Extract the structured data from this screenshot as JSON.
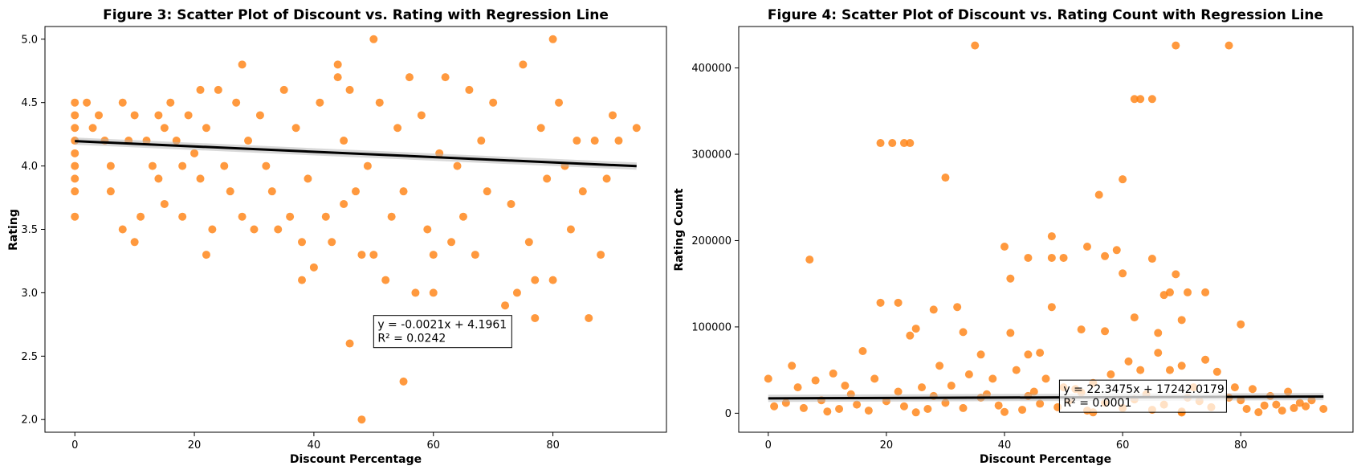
{
  "colors": {
    "point": "#ff7f0e",
    "line": "#000000",
    "ci": "#b3b3b3"
  },
  "chart_data": [
    {
      "type": "scatter",
      "title": "Figure 3: Scatter Plot of Discount vs. Rating with Regression Line",
      "xlabel": "Discount Percentage",
      "ylabel": "Rating",
      "xlim": [
        -5,
        99
      ],
      "ylim": [
        1.9,
        5.1
      ],
      "xticks": [
        0,
        20,
        40,
        60,
        80
      ],
      "yticks": [
        2.0,
        2.5,
        3.0,
        3.5,
        4.0,
        4.5,
        5.0
      ],
      "ytick_labels": [
        "2.0",
        "2.5",
        "3.0",
        "3.5",
        "4.0",
        "4.5",
        "5.0"
      ],
      "xtick_labels": [
        "0",
        "20",
        "40",
        "60",
        "80"
      ],
      "regression": {
        "slope": -0.0021,
        "intercept": 4.1961,
        "x_range": [
          0,
          94
        ]
      },
      "annotation": {
        "line1": "y = -0.0021x + 4.1961",
        "line2": "R² = 0.0242",
        "x": 50,
        "y": 2.58
      },
      "grid": false,
      "points": [
        [
          0,
          4.5
        ],
        [
          0,
          4.4
        ],
        [
          0,
          4.3
        ],
        [
          0,
          4.2
        ],
        [
          0,
          4.1
        ],
        [
          0,
          4.0
        ],
        [
          0,
          3.9
        ],
        [
          0,
          3.8
        ],
        [
          0,
          3.6
        ],
        [
          2,
          4.5
        ],
        [
          3,
          4.3
        ],
        [
          4,
          4.4
        ],
        [
          5,
          4.2
        ],
        [
          6,
          4.0
        ],
        [
          6,
          3.8
        ],
        [
          8,
          4.5
        ],
        [
          8,
          3.5
        ],
        [
          9,
          4.2
        ],
        [
          10,
          4.4
        ],
        [
          10,
          3.4
        ],
        [
          11,
          3.6
        ],
        [
          12,
          4.2
        ],
        [
          13,
          4.0
        ],
        [
          14,
          4.4
        ],
        [
          14,
          3.9
        ],
        [
          15,
          4.3
        ],
        [
          15,
          3.7
        ],
        [
          16,
          4.5
        ],
        [
          17,
          4.2
        ],
        [
          18,
          3.6
        ],
        [
          18,
          4.0
        ],
        [
          19,
          4.4
        ],
        [
          20,
          4.1
        ],
        [
          21,
          4.6
        ],
        [
          21,
          3.9
        ],
        [
          22,
          3.3
        ],
        [
          22,
          4.3
        ],
        [
          23,
          3.5
        ],
        [
          24,
          4.6
        ],
        [
          25,
          4.0
        ],
        [
          26,
          3.8
        ],
        [
          27,
          4.5
        ],
        [
          28,
          4.8
        ],
        [
          28,
          3.6
        ],
        [
          29,
          4.2
        ],
        [
          30,
          3.5
        ],
        [
          31,
          4.4
        ],
        [
          32,
          4.0
        ],
        [
          33,
          3.8
        ],
        [
          34,
          3.5
        ],
        [
          35,
          4.6
        ],
        [
          36,
          3.6
        ],
        [
          37,
          4.3
        ],
        [
          38,
          3.4
        ],
        [
          38,
          3.1
        ],
        [
          39,
          3.9
        ],
        [
          40,
          3.2
        ],
        [
          41,
          4.5
        ],
        [
          42,
          3.6
        ],
        [
          43,
          3.4
        ],
        [
          44,
          4.8
        ],
        [
          44,
          4.7
        ],
        [
          45,
          3.7
        ],
        [
          45,
          4.2
        ],
        [
          46,
          2.6
        ],
        [
          46,
          4.6
        ],
        [
          47,
          3.8
        ],
        [
          48,
          3.3
        ],
        [
          48,
          2.0
        ],
        [
          49,
          4.0
        ],
        [
          50,
          5.0
        ],
        [
          50,
          3.3
        ],
        [
          51,
          4.5
        ],
        [
          52,
          3.1
        ],
        [
          53,
          3.6
        ],
        [
          54,
          4.3
        ],
        [
          55,
          2.3
        ],
        [
          55,
          3.8
        ],
        [
          56,
          4.7
        ],
        [
          57,
          3.0
        ],
        [
          58,
          4.4
        ],
        [
          59,
          3.5
        ],
        [
          60,
          3.0
        ],
        [
          60,
          3.3
        ],
        [
          61,
          4.1
        ],
        [
          62,
          4.7
        ],
        [
          63,
          3.4
        ],
        [
          64,
          4.0
        ],
        [
          65,
          3.6
        ],
        [
          66,
          4.6
        ],
        [
          67,
          3.3
        ],
        [
          68,
          4.2
        ],
        [
          69,
          3.8
        ],
        [
          70,
          4.5
        ],
        [
          72,
          2.9
        ],
        [
          73,
          3.7
        ],
        [
          74,
          3.0
        ],
        [
          75,
          4.8
        ],
        [
          76,
          3.4
        ],
        [
          77,
          2.8
        ],
        [
          77,
          3.1
        ],
        [
          78,
          4.3
        ],
        [
          79,
          3.9
        ],
        [
          80,
          5.0
        ],
        [
          80,
          3.1
        ],
        [
          81,
          4.5
        ],
        [
          82,
          4.0
        ],
        [
          83,
          3.5
        ],
        [
          84,
          4.2
        ],
        [
          85,
          3.8
        ],
        [
          86,
          2.8
        ],
        [
          87,
          4.2
        ],
        [
          88,
          3.3
        ],
        [
          89,
          3.9
        ],
        [
          90,
          4.4
        ],
        [
          91,
          4.2
        ],
        [
          94,
          4.3
        ]
      ]
    },
    {
      "type": "scatter",
      "title": "Figure 4: Scatter Plot of Discount vs. Rating Count with Regression Line",
      "xlabel": "Discount Percentage",
      "ylabel": "Rating Count",
      "xlim": [
        -5,
        99
      ],
      "ylim": [
        -22000,
        448000
      ],
      "xticks": [
        0,
        20,
        40,
        60,
        80
      ],
      "yticks": [
        0,
        100000,
        200000,
        300000,
        400000
      ],
      "ytick_labels": [
        "0",
        "100000",
        "200000",
        "300000",
        "400000"
      ],
      "xtick_labels": [
        "0",
        "20",
        "40",
        "60",
        "80"
      ],
      "regression": {
        "slope": 22.3475,
        "intercept": 17242.0179,
        "x_range": [
          0,
          94
        ]
      },
      "annotation": {
        "line1": "y = 22.3475x + 17242.0179",
        "line2": "R² = 0.0001",
        "x": 49.3,
        "y": 3000
      },
      "grid": false,
      "points": [
        [
          35,
          426000
        ],
        [
          69,
          426000
        ],
        [
          78,
          426000
        ],
        [
          19,
          313000
        ],
        [
          21,
          313000
        ],
        [
          23,
          313000
        ],
        [
          24,
          313000
        ],
        [
          30,
          273000
        ],
        [
          60,
          271000
        ],
        [
          56,
          253000
        ],
        [
          62,
          364000
        ],
        [
          63,
          364000
        ],
        [
          65,
          364000
        ],
        [
          7,
          178000
        ],
        [
          19,
          128000
        ],
        [
          22,
          128000
        ],
        [
          40,
          193000
        ],
        [
          44,
          180000
        ],
        [
          48,
          205000
        ],
        [
          48,
          180000
        ],
        [
          50,
          180000
        ],
        [
          54,
          193000
        ],
        [
          57,
          182000
        ],
        [
          59,
          189000
        ],
        [
          60,
          162000
        ],
        [
          65,
          179000
        ],
        [
          69,
          161000
        ],
        [
          41,
          156000
        ],
        [
          28,
          120000
        ],
        [
          32,
          123000
        ],
        [
          48,
          123000
        ],
        [
          67,
          137000
        ],
        [
          68,
          140000
        ],
        [
          71,
          140000
        ],
        [
          74,
          140000
        ],
        [
          80,
          103000
        ],
        [
          70,
          108000
        ],
        [
          66,
          93000
        ],
        [
          62,
          111000
        ],
        [
          57,
          95000
        ],
        [
          33,
          94000
        ],
        [
          41,
          93000
        ],
        [
          53,
          97000
        ],
        [
          25,
          98000
        ],
        [
          24,
          90000
        ],
        [
          46,
          70000
        ],
        [
          44,
          68000
        ],
        [
          36,
          68000
        ],
        [
          16,
          72000
        ],
        [
          4,
          55000
        ],
        [
          11,
          46000
        ],
        [
          0,
          40000
        ],
        [
          5,
          30000
        ],
        [
          8,
          38000
        ],
        [
          13,
          32000
        ],
        [
          18,
          40000
        ],
        [
          26,
          30000
        ],
        [
          29,
          55000
        ],
        [
          31,
          32000
        ],
        [
          34,
          45000
        ],
        [
          38,
          40000
        ],
        [
          42,
          50000
        ],
        [
          45,
          25000
        ],
        [
          47,
          40000
        ],
        [
          50,
          30000
        ],
        [
          52,
          28000
        ],
        [
          55,
          35000
        ],
        [
          58,
          45000
        ],
        [
          61,
          60000
        ],
        [
          63,
          50000
        ],
        [
          66,
          70000
        ],
        [
          68,
          50000
        ],
        [
          70,
          55000
        ],
        [
          72,
          30000
        ],
        [
          74,
          62000
        ],
        [
          76,
          48000
        ],
        [
          79,
          30000
        ],
        [
          82,
          28000
        ],
        [
          85,
          20000
        ],
        [
          88,
          25000
        ],
        [
          90,
          12000
        ],
        [
          92,
          15000
        ],
        [
          94,
          5000
        ],
        [
          1,
          8000
        ],
        [
          3,
          12000
        ],
        [
          6,
          6000
        ],
        [
          9,
          15000
        ],
        [
          12,
          5000
        ],
        [
          15,
          10000
        ],
        [
          17,
          3000
        ],
        [
          20,
          14000
        ],
        [
          23,
          8000
        ],
        [
          27,
          5000
        ],
        [
          30,
          12000
        ],
        [
          33,
          6000
        ],
        [
          36,
          18000
        ],
        [
          39,
          9000
        ],
        [
          43,
          4000
        ],
        [
          46,
          11000
        ],
        [
          49,
          7000
        ],
        [
          51,
          15000
        ],
        [
          54,
          3000
        ],
        [
          57,
          12000
        ],
        [
          60,
          6000
        ],
        [
          62,
          16000
        ],
        [
          65,
          4000
        ],
        [
          67,
          10000
        ],
        [
          70,
          2000
        ],
        [
          73,
          14000
        ],
        [
          75,
          7000
        ],
        [
          78,
          18000
        ],
        [
          81,
          5000
        ],
        [
          84,
          9000
        ],
        [
          87,
          3000
        ],
        [
          89,
          6000
        ],
        [
          91,
          8000
        ],
        [
          14,
          22000
        ],
        [
          22,
          25000
        ],
        [
          28,
          20000
        ],
        [
          37,
          22000
        ],
        [
          44,
          20000
        ],
        [
          53,
          24000
        ],
        [
          64,
          22000
        ],
        [
          71,
          18000
        ],
        [
          80,
          15000
        ],
        [
          86,
          10000
        ],
        [
          10,
          2000
        ],
        [
          25,
          1000
        ],
        [
          40,
          1500
        ],
        [
          55,
          1000
        ],
        [
          70,
          800
        ],
        [
          83,
          1200
        ]
      ]
    }
  ]
}
